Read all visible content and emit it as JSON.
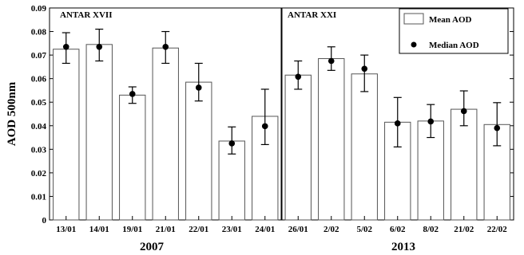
{
  "chart_data": {
    "type": "bar",
    "ylabel": "AOD 500nm",
    "ylim": [
      0,
      0.09
    ],
    "yticks": [
      "0",
      "0.01",
      "0.02",
      "0.03",
      "0.04",
      "0.05",
      "0.06",
      "0.07",
      "0.08",
      "0.09"
    ],
    "categories": [
      "13/01",
      "14/01",
      "19/01",
      "21/01",
      "22/01",
      "23/01",
      "24/01",
      "26/01",
      "2/02",
      "5/02",
      "6/02",
      "8/02",
      "21/02",
      "22/02"
    ],
    "series": [
      {
        "name": "Mean AOD",
        "values": [
          0.0725,
          0.0745,
          0.053,
          0.073,
          0.0585,
          0.0335,
          0.044,
          0.0615,
          0.0685,
          0.062,
          0.0415,
          0.042,
          0.047,
          0.0405
        ],
        "error_low": [
          0.0665,
          0.0675,
          0.0495,
          0.0665,
          0.0505,
          0.028,
          0.032,
          0.0555,
          0.0635,
          0.0545,
          0.031,
          0.035,
          0.04,
          0.0315
        ],
        "error_high": [
          0.0795,
          0.081,
          0.0565,
          0.08,
          0.0665,
          0.0395,
          0.0555,
          0.0675,
          0.0735,
          0.07,
          0.052,
          0.049,
          0.0548,
          0.0498
        ]
      },
      {
        "name": "Median AOD",
        "values": [
          0.0735,
          0.0735,
          0.0535,
          0.0735,
          0.0562,
          0.0325,
          0.0398,
          0.0608,
          0.0675,
          0.0642,
          0.041,
          0.0418,
          0.0462,
          0.039
        ]
      }
    ],
    "groups": [
      {
        "section_label": "ANTAR XVII",
        "year": "2007"
      },
      {
        "section_label": "ANTAR XXI",
        "year": "2013"
      }
    ],
    "legend_position": "top-right",
    "bar_fill": "#ffffff",
    "bar_stroke": "#555555",
    "marker_color": "#000000",
    "grid": false
  }
}
